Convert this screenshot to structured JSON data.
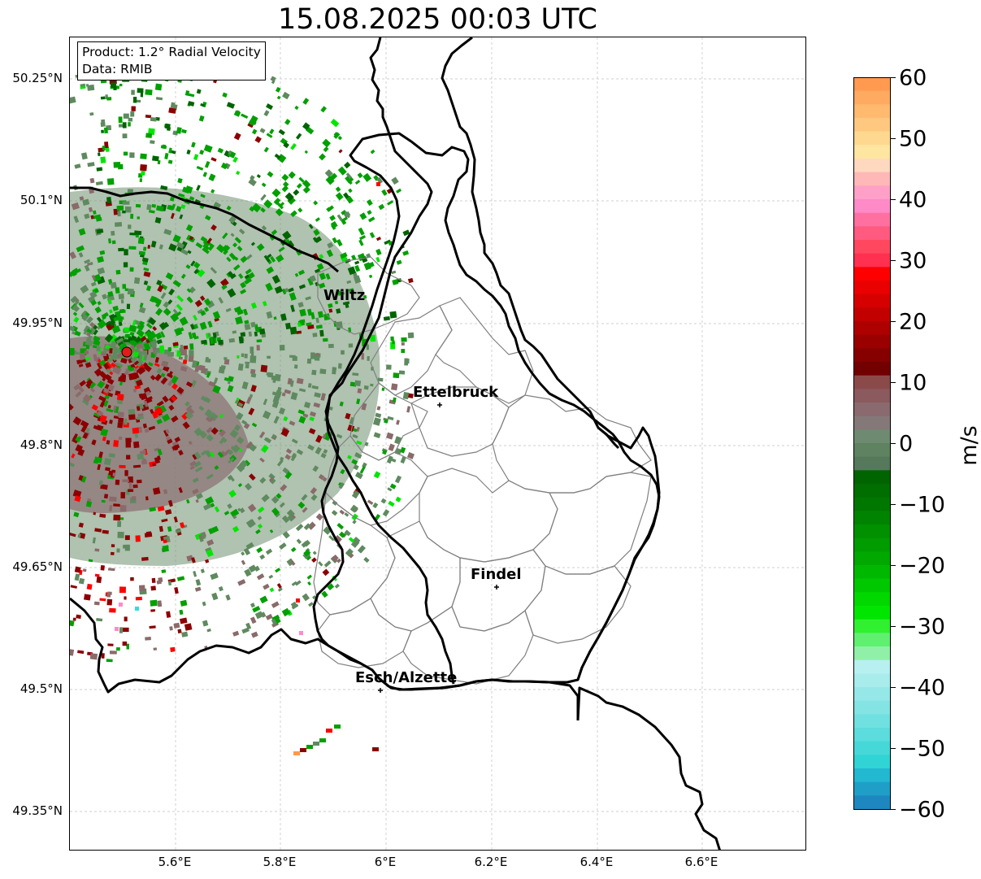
{
  "title": "15.08.2025 00:03 UTC",
  "info_box": {
    "product": "Product: 1.2° Radial Velocity",
    "data": "Data: RMIB"
  },
  "axes": {
    "lat_ticks": [
      "50.25°N",
      "50.1°N",
      "49.95°N",
      "49.8°N",
      "49.65°N",
      "49.5°N",
      "49.35°N"
    ],
    "lon_ticks": [
      "5.6°E",
      "5.8°E",
      "6°E",
      "6.2°E",
      "6.4°E",
      "6.6°E"
    ]
  },
  "cities": [
    {
      "name": "Wiltz"
    },
    {
      "name": "Ettelbruck"
    },
    {
      "name": "Findel"
    },
    {
      "name": "Esch/Alzette"
    }
  ],
  "colorbar": {
    "unit": "m/s",
    "ticks": [
      "60",
      "50",
      "40",
      "30",
      "20",
      "10",
      "0",
      "−10",
      "−20",
      "−30",
      "−40",
      "−50",
      "−60"
    ],
    "range": [
      -60,
      60
    ],
    "colors": {
      "green_dark": "#006400",
      "green_mid": "#00a000",
      "green_bright": "#00e600",
      "gray_green": "#5f8a5f",
      "gray_red": "#8a6a6a",
      "red_dark": "#8b0000",
      "red_bright": "#ff0000",
      "pink": "#ff8ac8",
      "orange": "#ff9a4a",
      "cyan": "#2ee0e0",
      "blue": "#1f77b4"
    }
  },
  "map_lines": {
    "border_color": "#000000",
    "canton_color": "#808080",
    "grid_color": "#c0c0c0"
  }
}
